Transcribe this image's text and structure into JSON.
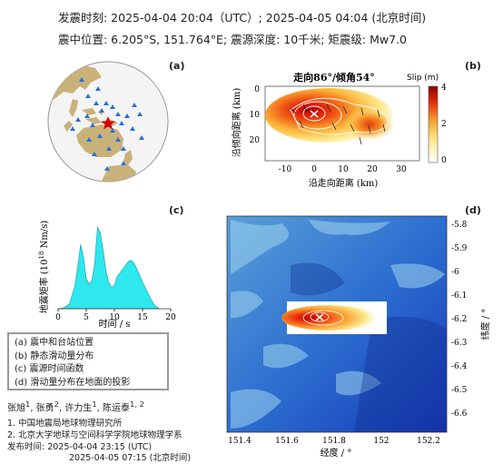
{
  "header": {
    "line1": "发震时刻: 2025-04-04 20:04（UTC）;  2025-04-05  04:04 (北京时间)",
    "line2": "震中位置: 6.205°S, 151.764°E;  震源深度: 10千米; 矩震级: Mw7.0"
  },
  "panels": {
    "a": {
      "label": "(a)"
    },
    "b": {
      "label": "(b)",
      "title": "走向86°/倾角54°",
      "colorbar_label": "Slip (m)",
      "colorbar_ticks": [
        "4",
        "2",
        "0"
      ],
      "xlabel": "沿走向距离 (km)",
      "ylabel": "沿倾向距离 (km)",
      "x_ticks": [
        "-10",
        "0",
        "10",
        "20",
        "30"
      ],
      "y_ticks": [
        "0",
        "10",
        "20"
      ]
    },
    "c": {
      "label": "(c)",
      "xlabel": "时间 / s",
      "ylabel": "地震矩率 (10",
      "ylabel_sup": "18",
      "ylabel_unit": " Nm/s)",
      "x_ticks": [
        "0",
        "5",
        "10",
        "15",
        "20"
      ]
    },
    "d": {
      "label": "(d)",
      "xlabel": "经度 / °",
      "ylabel": "纬度 / °",
      "x_ticks": [
        "151.4",
        "151.6",
        "151.8",
        "152",
        "152.2"
      ],
      "y_ticks": [
        "-5.8",
        "-5.9",
        "-6",
        "-6.1",
        "-6.2",
        "-6.3",
        "-6.4",
        "-6.5",
        "-6.6"
      ]
    }
  },
  "chart_data": [
    {
      "type": "area",
      "x": [
        0,
        1,
        2,
        3,
        3.5,
        4,
        4.5,
        5,
        5.5,
        6,
        6.5,
        7,
        7.5,
        8,
        8.5,
        9,
        9.5,
        10,
        10.5,
        11,
        11.5,
        12,
        12.5,
        13,
        13.5,
        14,
        14.5,
        15,
        15.5,
        16,
        16.5,
        17,
        17.5,
        18
      ],
      "values": [
        0,
        0.1,
        0.5,
        2.5,
        4.5,
        6.8,
        5.5,
        3.2,
        2.6,
        3.0,
        4.8,
        8.6,
        8.0,
        6.2,
        4.0,
        2.8,
        2.2,
        2.5,
        3.4,
        3.8,
        4.2,
        4.6,
        5.0,
        5.1,
        4.8,
        4.2,
        3.5,
        2.8,
        2.2,
        1.6,
        1.0,
        0.5,
        0.2,
        0
      ],
      "xlim": [
        0,
        20
      ]
    },
    {
      "type": "heatmap",
      "colorbar_range": [
        0,
        4
      ]
    }
  ],
  "legend": {
    "items": [
      "(a) 震中和台站位置",
      "(b) 静态滑动量分布",
      "(c) 震源时间函数",
      "(d) 滑动量分布在地面的投影"
    ]
  },
  "authors": {
    "names": "张旭",
    "n1": "1",
    "names2": ", 张勇",
    "n2": "2",
    "names3": ", 许力生",
    "n3": "1",
    "names4": ", 陈运泰",
    "n4": "1, 2",
    "aff1": "1. 中国地震局地球物理研究所",
    "aff2": "2. 北京大学地球与空间科学学院地球物理学系",
    "release_label": "发布时间: 2025-04-04  23:15 (UTC)",
    "release_beijing": "2025-04-05  07:15 (北京时间)"
  },
  "colors": {
    "land": "#c9b27a",
    "ocean": "#f4f4f4",
    "station": "#2a6fd6",
    "epicenter": "#d00000",
    "rate_fill": "#2ee8ee"
  }
}
